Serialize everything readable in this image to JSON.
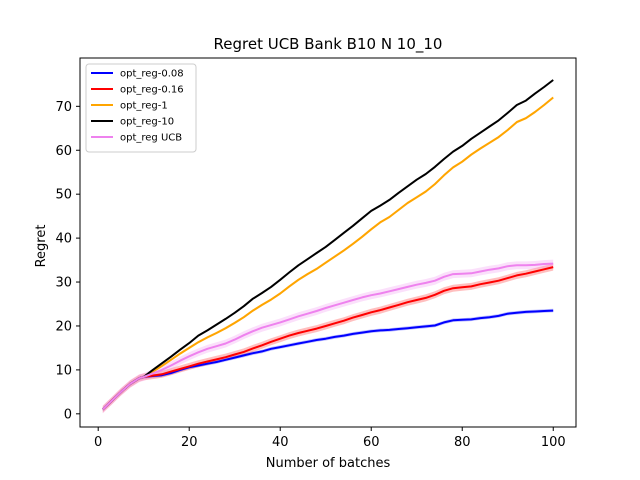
{
  "chart_data": {
    "type": "line",
    "title": "Regret UCB Bank B10 N 10_10",
    "xlabel": "Number of batches",
    "ylabel": "Regret",
    "xlim": [
      -4,
      105
    ],
    "ylim": [
      -3,
      81
    ],
    "xticks": [
      0,
      20,
      40,
      60,
      80,
      100
    ],
    "yticks": [
      0,
      10,
      20,
      30,
      40,
      50,
      60,
      70
    ],
    "grid": false,
    "legend_position": "top-left",
    "series": [
      {
        "name": "opt_reg-0.08",
        "color": "#0000ff",
        "band": 0.4,
        "points": [
          [
            1,
            1
          ],
          [
            3,
            3
          ],
          [
            5,
            5
          ],
          [
            7,
            6.8
          ],
          [
            9,
            8.1
          ],
          [
            10,
            8.4
          ],
          [
            12,
            8.6
          ],
          [
            14,
            8.8
          ],
          [
            16,
            9.3
          ],
          [
            18,
            10
          ],
          [
            20,
            10.6
          ],
          [
            22,
            11
          ],
          [
            24,
            11.4
          ],
          [
            26,
            11.8
          ],
          [
            28,
            12.3
          ],
          [
            30,
            12.8
          ],
          [
            32,
            13.3
          ],
          [
            34,
            13.8
          ],
          [
            36,
            14.2
          ],
          [
            38,
            14.8
          ],
          [
            40,
            15.2
          ],
          [
            42,
            15.6
          ],
          [
            44,
            16
          ],
          [
            46,
            16.4
          ],
          [
            48,
            16.8
          ],
          [
            50,
            17.1
          ],
          [
            52,
            17.5
          ],
          [
            54,
            17.8
          ],
          [
            56,
            18.2
          ],
          [
            58,
            18.5
          ],
          [
            60,
            18.8
          ],
          [
            62,
            19
          ],
          [
            64,
            19.1
          ],
          [
            66,
            19.3
          ],
          [
            68,
            19.5
          ],
          [
            70,
            19.7
          ],
          [
            72,
            19.9
          ],
          [
            74,
            20.1
          ],
          [
            76,
            20.8
          ],
          [
            78,
            21.3
          ],
          [
            80,
            21.4
          ],
          [
            82,
            21.5
          ],
          [
            84,
            21.8
          ],
          [
            86,
            22
          ],
          [
            88,
            22.3
          ],
          [
            90,
            22.8
          ],
          [
            92,
            23
          ],
          [
            94,
            23.2
          ],
          [
            96,
            23.3
          ],
          [
            98,
            23.4
          ],
          [
            100,
            23.5
          ]
        ]
      },
      {
        "name": "opt_reg-0.16",
        "color": "#ff0000",
        "band": 0.8,
        "points": [
          [
            1,
            1
          ],
          [
            3,
            3
          ],
          [
            5,
            5
          ],
          [
            7,
            6.8
          ],
          [
            9,
            8.1
          ],
          [
            10,
            8.4
          ],
          [
            12,
            8.7
          ],
          [
            14,
            9
          ],
          [
            16,
            9.6
          ],
          [
            18,
            10.2
          ],
          [
            20,
            10.8
          ],
          [
            22,
            11.4
          ],
          [
            24,
            11.9
          ],
          [
            26,
            12.4
          ],
          [
            28,
            12.9
          ],
          [
            30,
            13.5
          ],
          [
            32,
            14.1
          ],
          [
            34,
            14.9
          ],
          [
            36,
            15.6
          ],
          [
            38,
            16.4
          ],
          [
            40,
            17.1
          ],
          [
            42,
            17.8
          ],
          [
            44,
            18.4
          ],
          [
            46,
            18.9
          ],
          [
            48,
            19.4
          ],
          [
            50,
            20
          ],
          [
            52,
            20.6
          ],
          [
            54,
            21.2
          ],
          [
            56,
            21.9
          ],
          [
            58,
            22.5
          ],
          [
            60,
            23.1
          ],
          [
            62,
            23.6
          ],
          [
            64,
            24.2
          ],
          [
            66,
            24.8
          ],
          [
            68,
            25.4
          ],
          [
            70,
            25.9
          ],
          [
            72,
            26.4
          ],
          [
            74,
            27.1
          ],
          [
            76,
            28
          ],
          [
            78,
            28.6
          ],
          [
            80,
            28.8
          ],
          [
            82,
            29
          ],
          [
            84,
            29.5
          ],
          [
            86,
            29.9
          ],
          [
            88,
            30.3
          ],
          [
            90,
            30.9
          ],
          [
            92,
            31.5
          ],
          [
            94,
            31.9
          ],
          [
            96,
            32.4
          ],
          [
            98,
            32.9
          ],
          [
            100,
            33.4
          ]
        ]
      },
      {
        "name": "opt_reg-1",
        "color": "#ffa500",
        "band": 0.3,
        "points": [
          [
            1,
            1
          ],
          [
            3,
            3
          ],
          [
            5,
            5
          ],
          [
            7,
            6.8
          ],
          [
            9,
            8.1
          ],
          [
            10,
            8.4
          ],
          [
            12,
            9.6
          ],
          [
            14,
            10.9
          ],
          [
            16,
            12.3
          ],
          [
            18,
            13.7
          ],
          [
            20,
            15
          ],
          [
            22,
            16.3
          ],
          [
            24,
            17.4
          ],
          [
            26,
            18.4
          ],
          [
            28,
            19.5
          ],
          [
            30,
            20.7
          ],
          [
            32,
            22
          ],
          [
            34,
            23.5
          ],
          [
            36,
            24.8
          ],
          [
            38,
            26
          ],
          [
            40,
            27.4
          ],
          [
            42,
            29
          ],
          [
            44,
            30.5
          ],
          [
            46,
            31.8
          ],
          [
            48,
            33
          ],
          [
            50,
            34.4
          ],
          [
            52,
            35.8
          ],
          [
            54,
            37.2
          ],
          [
            56,
            38.7
          ],
          [
            58,
            40.3
          ],
          [
            60,
            42
          ],
          [
            62,
            43.6
          ],
          [
            64,
            44.8
          ],
          [
            66,
            46.4
          ],
          [
            68,
            48
          ],
          [
            70,
            49.3
          ],
          [
            72,
            50.6
          ],
          [
            74,
            52.3
          ],
          [
            76,
            54.3
          ],
          [
            78,
            56.1
          ],
          [
            80,
            57.4
          ],
          [
            82,
            59
          ],
          [
            84,
            60.4
          ],
          [
            86,
            61.7
          ],
          [
            88,
            63
          ],
          [
            90,
            64.6
          ],
          [
            92,
            66.4
          ],
          [
            94,
            67.3
          ],
          [
            96,
            68.7
          ],
          [
            98,
            70.3
          ],
          [
            100,
            72
          ]
        ]
      },
      {
        "name": "opt_reg-10",
        "color": "#000000",
        "band": 0.2,
        "points": [
          [
            1,
            1
          ],
          [
            3,
            3
          ],
          [
            5,
            5
          ],
          [
            7,
            6.8
          ],
          [
            9,
            8.1
          ],
          [
            10,
            8.4
          ],
          [
            12,
            10
          ],
          [
            14,
            11.5
          ],
          [
            16,
            13
          ],
          [
            18,
            14.6
          ],
          [
            20,
            16.1
          ],
          [
            22,
            17.8
          ],
          [
            24,
            19
          ],
          [
            26,
            20.3
          ],
          [
            28,
            21.6
          ],
          [
            30,
            23
          ],
          [
            32,
            24.5
          ],
          [
            34,
            26.2
          ],
          [
            36,
            27.5
          ],
          [
            38,
            28.9
          ],
          [
            40,
            30.5
          ],
          [
            42,
            32.2
          ],
          [
            44,
            33.8
          ],
          [
            46,
            35.2
          ],
          [
            48,
            36.6
          ],
          [
            50,
            38
          ],
          [
            52,
            39.6
          ],
          [
            54,
            41.2
          ],
          [
            56,
            42.8
          ],
          [
            58,
            44.5
          ],
          [
            60,
            46.2
          ],
          [
            62,
            47.4
          ],
          [
            64,
            48.7
          ],
          [
            66,
            50.3
          ],
          [
            68,
            51.8
          ],
          [
            70,
            53.3
          ],
          [
            72,
            54.6
          ],
          [
            74,
            56.2
          ],
          [
            76,
            58
          ],
          [
            78,
            59.7
          ],
          [
            80,
            61
          ],
          [
            82,
            62.6
          ],
          [
            84,
            64
          ],
          [
            86,
            65.4
          ],
          [
            88,
            66.8
          ],
          [
            90,
            68.5
          ],
          [
            92,
            70.3
          ],
          [
            94,
            71.3
          ],
          [
            96,
            72.9
          ],
          [
            98,
            74.4
          ],
          [
            100,
            76
          ]
        ]
      },
      {
        "name": "opt_reg UCB",
        "color": "#ee82ee",
        "band": 0.9,
        "points": [
          [
            1,
            1
          ],
          [
            3,
            3
          ],
          [
            5,
            5
          ],
          [
            7,
            6.8
          ],
          [
            9,
            8.1
          ],
          [
            10,
            8.4
          ],
          [
            12,
            9.2
          ],
          [
            14,
            10
          ],
          [
            16,
            11
          ],
          [
            18,
            12.1
          ],
          [
            20,
            13.1
          ],
          [
            22,
            14
          ],
          [
            24,
            14.8
          ],
          [
            26,
            15.4
          ],
          [
            28,
            16
          ],
          [
            30,
            16.9
          ],
          [
            32,
            17.9
          ],
          [
            34,
            18.8
          ],
          [
            36,
            19.6
          ],
          [
            38,
            20.2
          ],
          [
            40,
            20.8
          ],
          [
            42,
            21.5
          ],
          [
            44,
            22.2
          ],
          [
            46,
            22.8
          ],
          [
            48,
            23.4
          ],
          [
            50,
            24.1
          ],
          [
            52,
            24.7
          ],
          [
            54,
            25.3
          ],
          [
            56,
            25.9
          ],
          [
            58,
            26.5
          ],
          [
            60,
            27
          ],
          [
            62,
            27.4
          ],
          [
            64,
            27.9
          ],
          [
            66,
            28.4
          ],
          [
            68,
            28.9
          ],
          [
            70,
            29.4
          ],
          [
            72,
            29.8
          ],
          [
            74,
            30.3
          ],
          [
            76,
            31.2
          ],
          [
            78,
            31.8
          ],
          [
            80,
            31.9
          ],
          [
            82,
            32
          ],
          [
            84,
            32.4
          ],
          [
            86,
            32.8
          ],
          [
            88,
            33.1
          ],
          [
            90,
            33.6
          ],
          [
            92,
            33.8
          ],
          [
            94,
            33.8
          ],
          [
            96,
            33.9
          ],
          [
            98,
            34.1
          ],
          [
            100,
            34.2
          ]
        ]
      }
    ]
  }
}
